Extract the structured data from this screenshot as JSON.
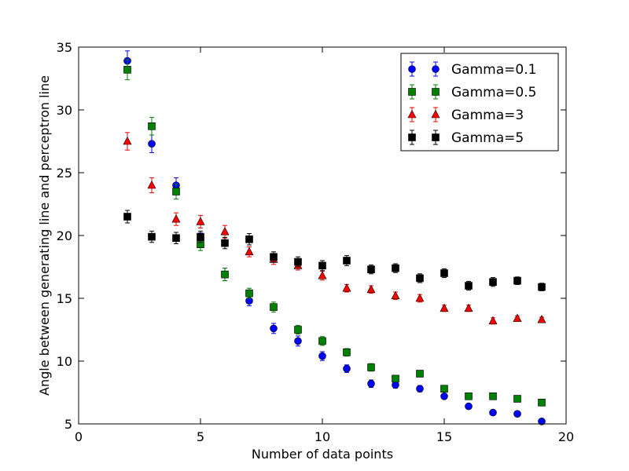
{
  "chart_data": {
    "type": "scatter",
    "xlabel": "Number of data points",
    "ylabel": "Angle between generating line and perceptron line",
    "xlim": [
      0,
      20
    ],
    "ylim": [
      5,
      35
    ],
    "xticks": [
      0,
      5,
      10,
      15,
      20
    ],
    "yticks": [
      5,
      10,
      15,
      20,
      25,
      30,
      35
    ],
    "grid": false,
    "legend_position": "top-right",
    "series": [
      {
        "name": "Gamma=0.1",
        "color": "#0000ff",
        "marker": "circle",
        "x": [
          2,
          3,
          4,
          5,
          6,
          7,
          8,
          9,
          10,
          11,
          12,
          13,
          14,
          15,
          16,
          17,
          18,
          19
        ],
        "y": [
          33.9,
          27.3,
          24.0,
          19.7,
          16.9,
          14.8,
          12.6,
          11.6,
          10.4,
          9.4,
          8.2,
          8.1,
          7.8,
          7.2,
          6.4,
          5.9,
          5.8,
          5.2
        ],
        "err": [
          0.8,
          0.7,
          0.6,
          0.5,
          0.5,
          0.4,
          0.4,
          0.4,
          0.35,
          0.3,
          0.3,
          0.25,
          0.25,
          0.2,
          0.2,
          0.2,
          0.2,
          0.15
        ]
      },
      {
        "name": "Gamma=0.5",
        "color": "#008000",
        "marker": "square",
        "x": [
          2,
          3,
          4,
          5,
          6,
          7,
          8,
          9,
          10,
          11,
          12,
          13,
          14,
          15,
          16,
          17,
          18,
          19
        ],
        "y": [
          33.2,
          28.7,
          23.5,
          19.3,
          16.9,
          15.4,
          14.3,
          12.5,
          11.6,
          10.7,
          9.5,
          8.6,
          9.0,
          7.8,
          7.2,
          7.2,
          7.0,
          6.7
        ],
        "err": [
          0.8,
          0.7,
          0.6,
          0.5,
          0.5,
          0.4,
          0.4,
          0.35,
          0.35,
          0.3,
          0.3,
          0.25,
          0.25,
          0.2,
          0.2,
          0.2,
          0.2,
          0.15
        ]
      },
      {
        "name": "Gamma=3",
        "color": "#ff0000",
        "marker": "triangle",
        "x": [
          2,
          3,
          4,
          5,
          6,
          7,
          8,
          9,
          10,
          11,
          12,
          13,
          14,
          15,
          16,
          17,
          18,
          19
        ],
        "y": [
          27.5,
          24.0,
          21.3,
          21.1,
          20.3,
          18.7,
          18.1,
          17.6,
          16.8,
          15.8,
          15.7,
          15.2,
          15.0,
          14.2,
          14.2,
          13.2,
          13.4,
          13.3
        ],
        "err": [
          0.7,
          0.6,
          0.5,
          0.5,
          0.5,
          0.4,
          0.4,
          0.35,
          0.35,
          0.3,
          0.3,
          0.3,
          0.3,
          0.25,
          0.25,
          0.25,
          0.2,
          0.2
        ]
      },
      {
        "name": "Gamma=5",
        "color": "#000000",
        "marker": "square",
        "x": [
          2,
          3,
          4,
          5,
          6,
          7,
          8,
          9,
          10,
          11,
          12,
          13,
          14,
          15,
          16,
          17,
          18,
          19
        ],
        "y": [
          21.5,
          19.9,
          19.8,
          19.9,
          19.4,
          19.7,
          18.3,
          17.9,
          17.6,
          18.0,
          17.3,
          17.4,
          16.6,
          17.0,
          16.0,
          16.3,
          16.4,
          15.9
        ],
        "err": [
          0.5,
          0.45,
          0.45,
          0.45,
          0.45,
          0.45,
          0.4,
          0.4,
          0.4,
          0.4,
          0.35,
          0.35,
          0.35,
          0.35,
          0.35,
          0.35,
          0.3,
          0.3
        ]
      }
    ]
  }
}
